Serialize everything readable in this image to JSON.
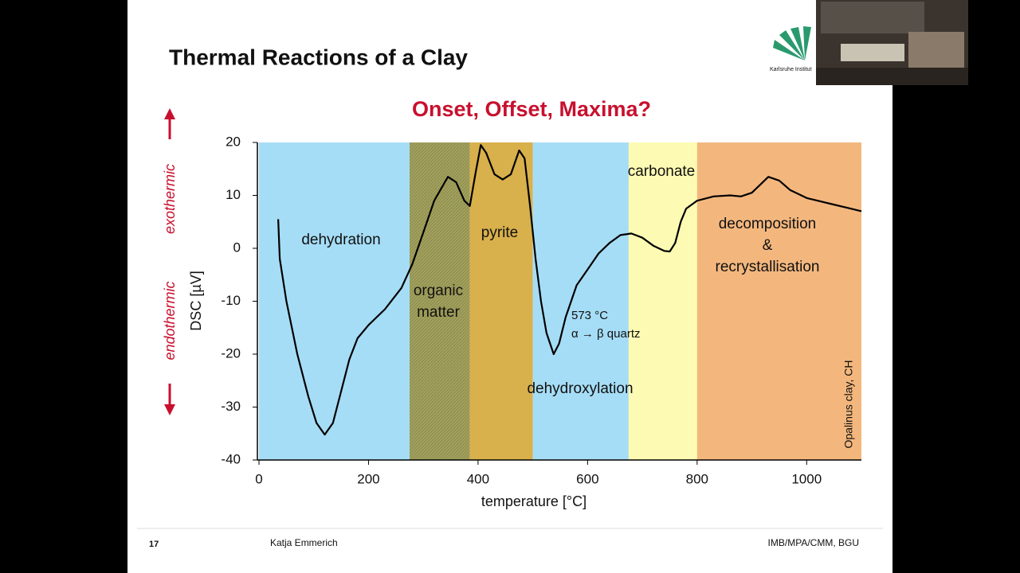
{
  "slide": {
    "title": "Thermal Reactions of a Clay",
    "page_number": "17",
    "author": "Katja Emmerich",
    "affiliation": "IMB/MPA/CMM, BGU",
    "logo_text": "Karlsruhe Institut"
  },
  "chart_data": {
    "type": "line",
    "title": "Onset, Offset, Maxima?",
    "xlabel": "temperature [°C]",
    "ylabel": "DSC [µV]",
    "side_labels": [
      "exothermic",
      "endothermic"
    ],
    "x": [
      35,
      38,
      50,
      70,
      90,
      105,
      120,
      135,
      150,
      165,
      180,
      200,
      230,
      260,
      280,
      300,
      320,
      345,
      360,
      375,
      385,
      395,
      405,
      415,
      430,
      445,
      460,
      475,
      485,
      495,
      505,
      515,
      525,
      538,
      548,
      560,
      580,
      600,
      620,
      640,
      660,
      680,
      700,
      720,
      740,
      750,
      760,
      770,
      780,
      800,
      830,
      860,
      880,
      900,
      915,
      930,
      950,
      970,
      1000,
      1040,
      1080,
      1100
    ],
    "values": [
      5.5,
      -2,
      -10,
      -20,
      -28,
      -33,
      -35.2,
      -33,
      -27,
      -21,
      -17,
      -14.5,
      -11.5,
      -7.5,
      -3,
      3,
      9,
      13.5,
      12.5,
      9,
      8,
      14,
      19.5,
      18,
      14,
      13,
      14,
      18.5,
      17,
      8,
      -2,
      -10,
      -16,
      -20,
      -18,
      -13,
      -7,
      -4,
      -1,
      1,
      2.5,
      2.8,
      2,
      0.5,
      -0.5,
      -0.6,
      1,
      5,
      7.5,
      9,
      9.8,
      10,
      9.8,
      10.5,
      12,
      13.5,
      12.8,
      11,
      9.5,
      8.5,
      7.5,
      7
    ],
    "color": "#000000",
    "regions": [
      {
        "from": 0,
        "to": 275,
        "color": "#a6ddf6"
      },
      {
        "from": 275,
        "to": 385,
        "color": "#a3a05e"
      },
      {
        "from": 385,
        "to": 500,
        "color": "#d8b04c"
      },
      {
        "from": 500,
        "to": 675,
        "color": "#a6ddf6"
      },
      {
        "from": 675,
        "to": 800,
        "color": "#fdfbb3"
      },
      {
        "from": 800,
        "to": 1100,
        "color": "#f3b77e"
      }
    ],
    "annotations": [
      "dehydration",
      "organic",
      "matter",
      "pyrite",
      "dehydroxylation",
      "carbonate",
      "decomposition",
      "&",
      "recrystallisation",
      "573 °C",
      "α → β quartz",
      "Opalinus clay, CH"
    ],
    "xlim": [
      0,
      1100
    ],
    "ylim": [
      -40,
      20
    ],
    "xticks": [
      0,
      200,
      400,
      600,
      800,
      1000
    ],
    "yticks": [
      -40,
      -30,
      -20,
      -10,
      0,
      10,
      20
    ]
  }
}
